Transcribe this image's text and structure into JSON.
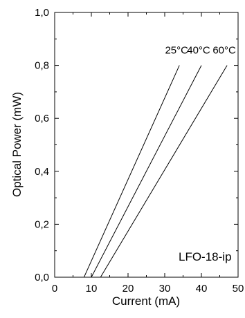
{
  "chart_data": {
    "type": "line",
    "title": "",
    "xlabel": "Current (mA)",
    "ylabel": "Optical Power (mW)",
    "xlim": [
      0,
      50
    ],
    "ylim": [
      0,
      1.0
    ],
    "x_ticks": [
      "0",
      "10",
      "20",
      "30",
      "40",
      "50"
    ],
    "y_ticks": [
      "0,0",
      "0,2",
      "0,4",
      "0,6",
      "0,8",
      "1,0"
    ],
    "grid": false,
    "legend": "none",
    "annotation": "LFO-18-ip",
    "series": [
      {
        "name": "25°C",
        "x": [
          0,
          8,
          34
        ],
        "y": [
          0,
          0,
          0.8
        ]
      },
      {
        "name": "40°C",
        "x": [
          0,
          10,
          40
        ],
        "y": [
          0,
          0,
          0.8
        ]
      },
      {
        "name": "60°C",
        "x": [
          0,
          12.5,
          47
        ],
        "y": [
          0,
          0,
          0.8
        ]
      }
    ],
    "line_color": "#000000"
  }
}
